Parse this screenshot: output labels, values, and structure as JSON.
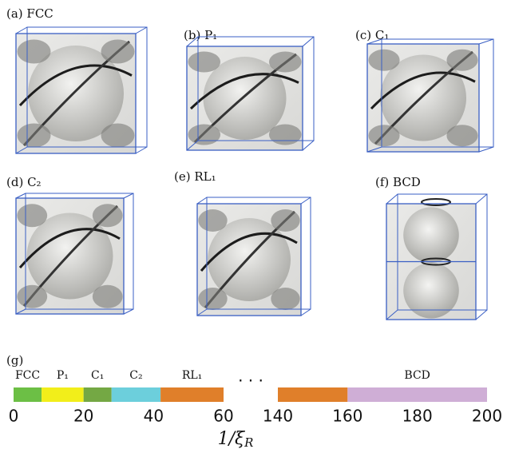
{
  "panels": [
    {
      "label": "(a) FCC"
    },
    {
      "label": "(b) P₁"
    },
    {
      "label": "(c) C₁"
    },
    {
      "label": "(d) C₂"
    },
    {
      "label": "(e) RL₁"
    },
    {
      "label": "(f) BCD"
    }
  ],
  "chart_data": {
    "type": "bar",
    "panel_label": "(g)",
    "segments": [
      {
        "name": "FCC",
        "range": [
          0,
          8
        ],
        "color": "#6cbf45"
      },
      {
        "name": "P₁",
        "range": [
          8,
          20
        ],
        "color": "#f2ee1a"
      },
      {
        "name": "C₁",
        "range": [
          20,
          28
        ],
        "color": "#74a844"
      },
      {
        "name": "C₂",
        "range": [
          28,
          42
        ],
        "color": "#6ccfdc"
      },
      {
        "name": "RL₁",
        "range": [
          42,
          60
        ],
        "color": "#e07f2a"
      },
      {
        "name": null,
        "range": [
          140,
          160
        ],
        "color": "#e07f2a"
      },
      {
        "name": "BCD",
        "range": [
          160,
          200
        ],
        "color": "#cfaed6"
      }
    ],
    "axes": [
      {
        "xlim": [
          0,
          60
        ],
        "xticks": [
          0,
          20,
          40,
          60
        ]
      },
      {
        "xlim": [
          140,
          200
        ],
        "xticks": [
          140,
          160,
          180,
          200
        ]
      }
    ],
    "break_marker": "· · ·",
    "x_label": "1/ξ",
    "x_label_sub": "R"
  }
}
